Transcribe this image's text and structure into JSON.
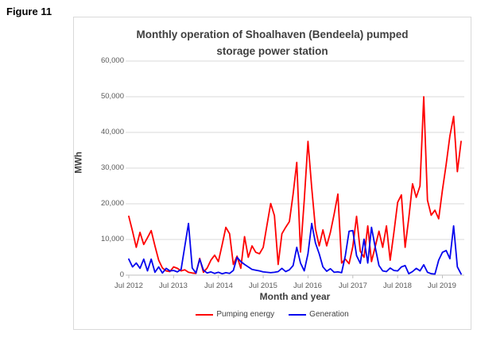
{
  "figure_label": "Figure 11",
  "chart": {
    "title_line1": "Monthly operation of Shoalhaven (Bendeela) pumped",
    "title_line2": "storage power station",
    "y_axis_label": "MWh",
    "x_axis_label": "Month and year",
    "y_ticks": [
      "60,000",
      "50,000",
      "40,000",
      "30,000",
      "20,000",
      "10,000",
      "0"
    ],
    "x_ticks": [
      "Jul 2012",
      "Jul 2013",
      "Jul 2014",
      "Jul 2015",
      "Jul 2016",
      "Jul 2017",
      "Jul 2018",
      "Jul 2019"
    ],
    "legend": [
      {
        "label": "Pumping energy",
        "color": "#fe0000"
      },
      {
        "label": "Generation",
        "color": "#0404ee"
      }
    ],
    "colors": {
      "gridline": "#d9d9d9",
      "axis": "#bfbfbf",
      "tick_text": "#595959",
      "title_text": "#3f3f3f"
    }
  },
  "chart_data": {
    "type": "line",
    "unit": "MWh",
    "x_unit": "month",
    "x_first": "Jul 2012",
    "x_last": "Dec 2019",
    "x_points": 90,
    "ylim": [
      0,
      60000
    ],
    "y_gridline_step": 10000,
    "legend_position": "bottom",
    "series": [
      {
        "name": "Pumping energy",
        "color": "#fe0000",
        "values": [
          16500,
          12300,
          7800,
          12000,
          8600,
          10500,
          12500,
          8200,
          4200,
          2000,
          1200,
          1000,
          2300,
          1900,
          1200,
          1500,
          800,
          600,
          500,
          4700,
          800,
          2000,
          4200,
          5600,
          3800,
          8500,
          13400,
          11600,
          3000,
          5300,
          1900,
          10800,
          5000,
          8200,
          6400,
          6000,
          7800,
          14000,
          20100,
          16700,
          3000,
          11600,
          13400,
          15000,
          22700,
          31600,
          6500,
          21000,
          37500,
          24500,
          13000,
          8200,
          12700,
          8200,
          12000,
          17100,
          22700,
          3400,
          4500,
          3200,
          8000,
          16500,
          6700,
          5000,
          13800,
          3800,
          8000,
          12300,
          7800,
          13800,
          4200,
          12000,
          20400,
          22500,
          7800,
          16000,
          25600,
          21800,
          25000,
          50000,
          21000,
          16800,
          18200,
          15800,
          23800,
          31000,
          39000,
          44500,
          29000,
          37500
        ]
      },
      {
        "name": "Generation",
        "color": "#0404ee",
        "values": [
          4500,
          2300,
          3400,
          1900,
          4500,
          1200,
          4500,
          800,
          2300,
          600,
          1900,
          1200,
          1300,
          900,
          1600,
          8000,
          14500,
          2000,
          600,
          4500,
          1400,
          600,
          900,
          500,
          800,
          400,
          700,
          500,
          1300,
          5000,
          3800,
          3000,
          2300,
          1600,
          1400,
          1200,
          900,
          800,
          700,
          800,
          1000,
          1900,
          1000,
          1500,
          2700,
          7800,
          3400,
          1200,
          6000,
          14500,
          9000,
          6000,
          2300,
          1100,
          1800,
          800,
          900,
          700,
          5500,
          12300,
          12500,
          5500,
          3300,
          10100,
          3400,
          13400,
          7800,
          2700,
          1200,
          1000,
          2000,
          1300,
          1200,
          2300,
          2700,
          400,
          1000,
          1900,
          1200,
          2900,
          800,
          400,
          300,
          4200,
          6400,
          6900,
          4600,
          13800,
          2300,
          300
        ]
      }
    ]
  }
}
